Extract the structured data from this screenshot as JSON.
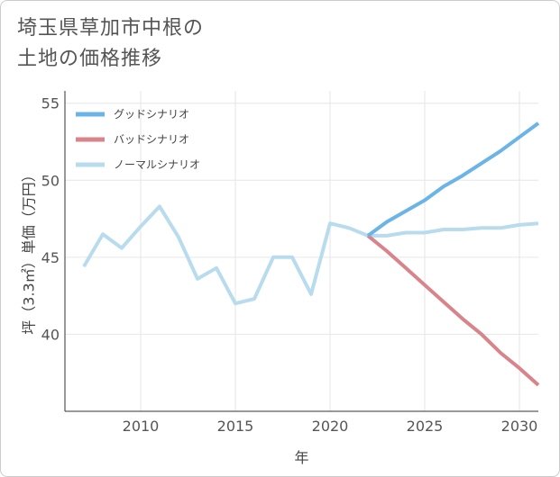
{
  "title": {
    "line1": "埼玉県草加市中根の",
    "line2": "土地の価格推移"
  },
  "chart_data": {
    "type": "line",
    "xlabel": "年",
    "ylabel": "坪（3.3㎡）単価（万円）",
    "xlim": [
      2006,
      2031
    ],
    "ylim": [
      35,
      55.8
    ],
    "xticks": [
      2010,
      2015,
      2020,
      2025,
      2030
    ],
    "yticks": [
      40,
      45,
      50,
      55
    ],
    "grid": true,
    "legend_position": "top-left",
    "series": [
      {
        "name": "グッドシナリオ",
        "color": "#6ab4e8",
        "x": [
          2022,
          2023,
          2024,
          2025,
          2026,
          2027,
          2028,
          2029,
          2030,
          2031
        ],
        "values": [
          46.4,
          47.3,
          48.0,
          48.7,
          49.6,
          50.3,
          51.1,
          51.9,
          52.8,
          53.7
        ]
      },
      {
        "name": "バッドシナリオ",
        "color": "#d9848b",
        "x": [
          2022,
          2023,
          2024,
          2025,
          2026,
          2027,
          2028,
          2029,
          2030,
          2031
        ],
        "values": [
          46.4,
          45.4,
          44.3,
          43.2,
          42.1,
          41.0,
          40.0,
          38.8,
          37.8,
          36.7
        ]
      },
      {
        "name": "ノーマルシナリオ",
        "color": "#b8dcee",
        "x": [
          2007,
          2008,
          2009,
          2010,
          2011,
          2012,
          2013,
          2014,
          2015,
          2016,
          2017,
          2018,
          2019,
          2020,
          2021,
          2022,
          2023,
          2024,
          2025,
          2026,
          2027,
          2028,
          2029,
          2030,
          2031
        ],
        "values": [
          44.4,
          46.5,
          45.6,
          47.0,
          48.3,
          46.3,
          43.6,
          44.3,
          42.0,
          42.3,
          45.0,
          45.0,
          42.6,
          47.2,
          46.9,
          46.4,
          46.4,
          46.6,
          46.6,
          46.8,
          46.8,
          46.9,
          46.9,
          47.1,
          47.2
        ]
      }
    ]
  }
}
